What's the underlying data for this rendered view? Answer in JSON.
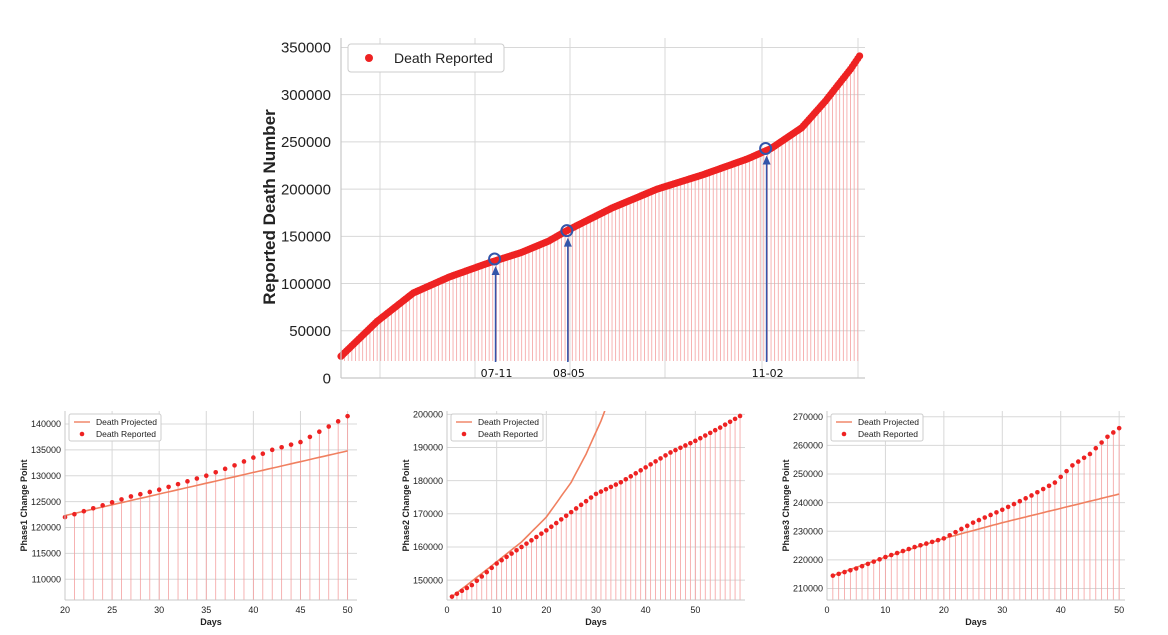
{
  "colors": {
    "reported": "#ee2222",
    "stem": "#f4a0a0",
    "projected": "#f08060",
    "marker": "#3355aa",
    "grid": "#d8d8d8",
    "frame": "#c8c8c8"
  },
  "chart_data": [
    {
      "type": "scatter",
      "id": "main",
      "title": "",
      "xlabel": "",
      "ylabel": "Reported Death Number",
      "ylim": [
        0,
        360000
      ],
      "yticks": [
        0,
        50000,
        100000,
        150000,
        200000,
        250000,
        300000,
        350000
      ],
      "ytick_labels": [
        "0",
        "50000",
        "100000",
        "150000",
        "200000",
        "250000",
        "300000",
        "350000"
      ],
      "xlim": [
        0,
        290
      ],
      "grid": true,
      "legend": {
        "position": "top-left",
        "entries": [
          "Death Reported"
        ]
      },
      "series_knots": [
        [
          0,
          23000
        ],
        [
          20,
          60000
        ],
        [
          40,
          90000
        ],
        [
          60,
          107000
        ],
        [
          82,
          122000
        ],
        [
          100,
          133000
        ],
        [
          115,
          145000
        ],
        [
          125,
          156000
        ],
        [
          150,
          180000
        ],
        [
          175,
          200000
        ],
        [
          200,
          215000
        ],
        [
          225,
          232000
        ],
        [
          238,
          243000
        ],
        [
          255,
          265000
        ],
        [
          268,
          293000
        ],
        [
          282,
          327000
        ],
        [
          287,
          341000
        ]
      ],
      "annotations": [
        {
          "label": "07-11",
          "x": 85,
          "y": 126000
        },
        {
          "label": "08-05",
          "x": 125,
          "y": 156000
        },
        {
          "label": "11-02",
          "x": 235,
          "y": 243000
        }
      ]
    },
    {
      "type": "scatter",
      "id": "phase1",
      "xlabel": "Days",
      "ylabel": "Phase1 Change Point",
      "xlim": [
        20,
        51
      ],
      "ylim": [
        106000,
        142500
      ],
      "xticks": [
        20,
        25,
        30,
        35,
        40,
        45,
        50
      ],
      "xtick_labels": [
        "20",
        "25",
        "30",
        "35",
        "40",
        "45",
        "50"
      ],
      "yticks": [
        110000,
        115000,
        120000,
        125000,
        130000,
        135000,
        140000
      ],
      "ytick_labels": [
        "110000",
        "115000",
        "120000",
        "125000",
        "130000",
        "135000",
        "140000"
      ],
      "legend": {
        "position": "top-left",
        "entries": [
          "Death Projected",
          "Death Reported"
        ]
      },
      "series": [
        {
          "name": "Death Reported",
          "kind": "points",
          "knots": [
            [
              20,
              122000
            ],
            [
              27,
              126000
            ],
            [
              30,
              127300
            ],
            [
              35,
              130000
            ],
            [
              38,
              132000
            ],
            [
              42,
              135000
            ],
            [
              45,
              136500
            ],
            [
              48,
              139500
            ],
            [
              50,
              141500
            ]
          ]
        },
        {
          "name": "Death Projected",
          "kind": "line",
          "knots": [
            [
              20,
              122300
            ],
            [
              50,
              134800
            ]
          ]
        }
      ]
    },
    {
      "type": "scatter",
      "id": "phase2",
      "xlabel": "Days",
      "ylabel": "Phase2 Change Point",
      "xlim": [
        0,
        60
      ],
      "ylim": [
        144000,
        201000
      ],
      "xticks": [
        0,
        10,
        20,
        30,
        40,
        50
      ],
      "xtick_labels": [
        "0",
        "10",
        "20",
        "30",
        "40",
        "50"
      ],
      "yticks": [
        150000,
        160000,
        170000,
        180000,
        190000,
        200000
      ],
      "ytick_labels": [
        "150000",
        "160000",
        "170000",
        "180000",
        "190000",
        "200000"
      ],
      "legend": {
        "position": "top-left",
        "entries": [
          "Death Projected",
          "Death Reported"
        ]
      },
      "series": [
        {
          "name": "Death Reported",
          "kind": "points",
          "knots": [
            [
              1,
              145000
            ],
            [
              5,
              148500
            ],
            [
              10,
              155000
            ],
            [
              15,
              160000
            ],
            [
              20,
              165000
            ],
            [
              25,
              170500
            ],
            [
              30,
              176000
            ],
            [
              35,
              179500
            ],
            [
              40,
              184000
            ],
            [
              45,
              188500
            ],
            [
              50,
              192000
            ],
            [
              55,
              196000
            ],
            [
              59,
              199500
            ]
          ]
        },
        {
          "name": "Death Projected",
          "kind": "line",
          "knots": [
            [
              1,
              145000
            ],
            [
              10,
              155500
            ],
            [
              15,
              161500
            ],
            [
              20,
              169000
            ],
            [
              25,
              179500
            ],
            [
              28,
              188000
            ],
            [
              31,
              198000
            ],
            [
              32,
              202000
            ]
          ]
        }
      ]
    },
    {
      "type": "scatter",
      "id": "phase3",
      "xlabel": "Days",
      "ylabel": "Phase3 Change Point",
      "xlim": [
        0,
        51
      ],
      "ylim": [
        206000,
        272000
      ],
      "xticks": [
        0,
        10,
        20,
        30,
        40,
        50
      ],
      "xtick_labels": [
        "0",
        "10",
        "20",
        "30",
        "40",
        "50"
      ],
      "yticks": [
        210000,
        220000,
        230000,
        240000,
        250000,
        260000,
        270000
      ],
      "ytick_labels": [
        "210000",
        "220000",
        "230000",
        "240000",
        "250000",
        "260000",
        "270000"
      ],
      "legend": {
        "position": "top-left",
        "entries": [
          "Death Projected",
          "Death Reported"
        ]
      },
      "series": [
        {
          "name": "Death Reported",
          "kind": "points",
          "knots": [
            [
              1,
              214500
            ],
            [
              5,
              217000
            ],
            [
              10,
              221000
            ],
            [
              15,
              224500
            ],
            [
              20,
              227500
            ],
            [
              25,
              233000
            ],
            [
              30,
              237500
            ],
            [
              35,
              242500
            ],
            [
              39,
              247000
            ],
            [
              42,
              253000
            ],
            [
              45,
              257000
            ],
            [
              48,
              263000
            ],
            [
              50,
              266000
            ]
          ]
        },
        {
          "name": "Death Projected",
          "kind": "line",
          "knots": [
            [
              1,
              214500
            ],
            [
              10,
              221000
            ],
            [
              20,
              227500
            ],
            [
              30,
              233000
            ],
            [
              40,
              238000
            ],
            [
              50,
              243000
            ]
          ]
        }
      ]
    }
  ]
}
